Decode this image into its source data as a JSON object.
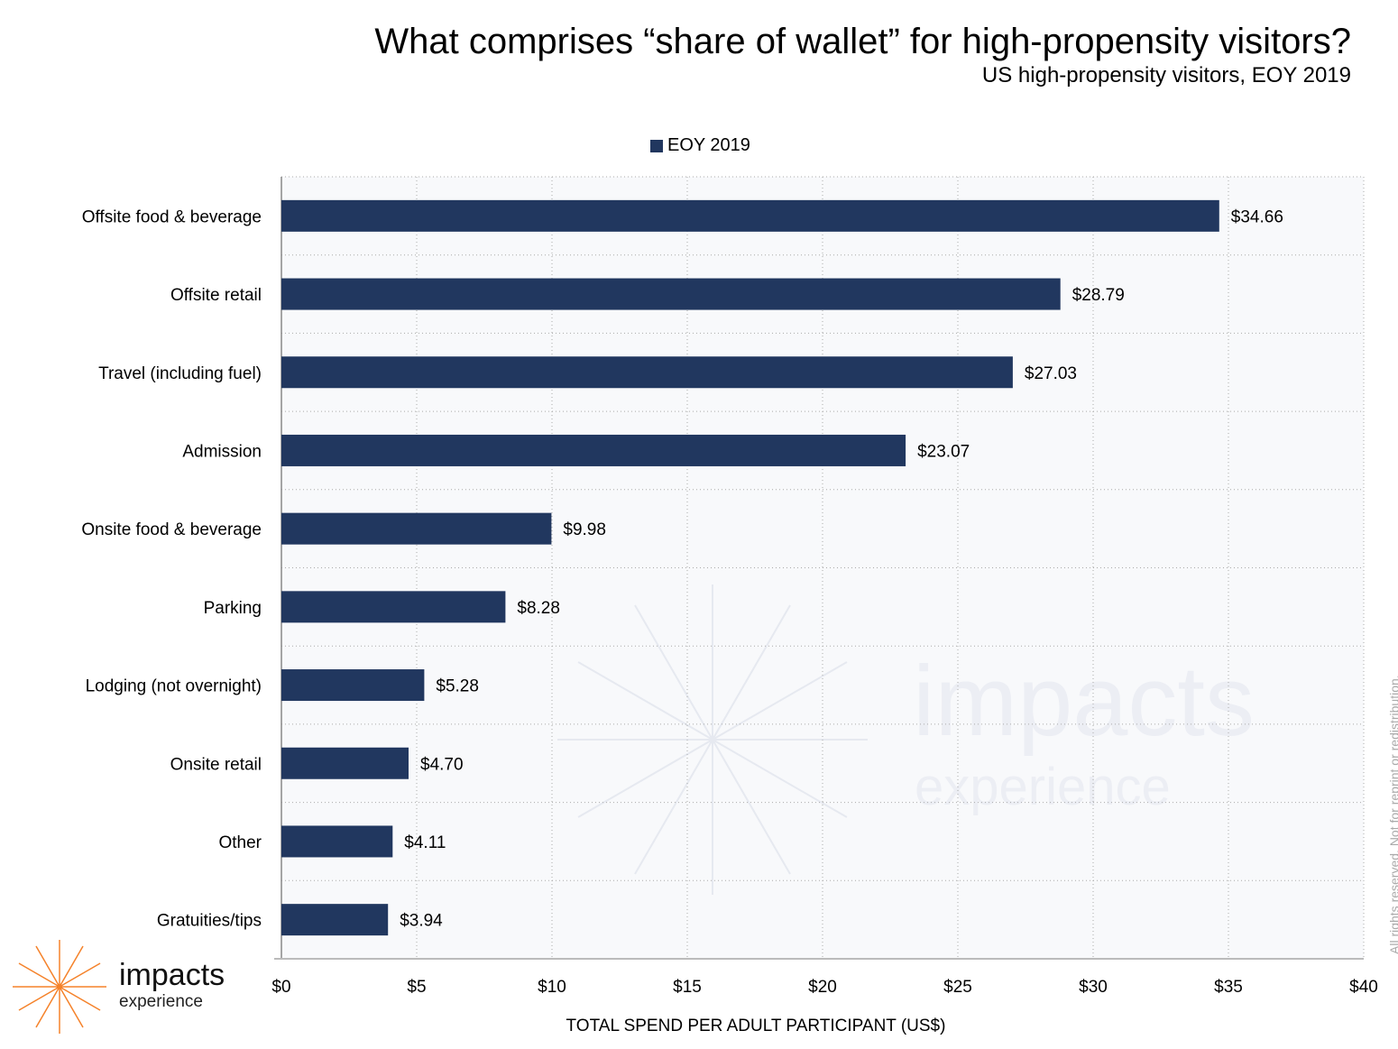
{
  "title": "What comprises “share of wallet” for high-propensity visitors?",
  "subtitle": "US high-propensity visitors, EOY 2019",
  "rights_note": "All rights reserved. Not for reprint or redistribution.",
  "logo": {
    "line1": "impacts",
    "line2": "experience",
    "color": "#f5822a"
  },
  "watermark": {
    "line1": "impacts",
    "line2": "experience"
  },
  "chart_data": {
    "type": "bar",
    "orientation": "horizontal",
    "title": "What comprises “share of wallet” for high-propensity visitors?",
    "subtitle": "US high-propensity visitors, EOY 2019",
    "xlabel": "TOTAL SPEND PER ADULT PARTICIPANT (US$)",
    "ylabel": "",
    "xlim": [
      0,
      40
    ],
    "xticks": [
      0,
      5,
      10,
      15,
      20,
      25,
      30,
      35,
      40
    ],
    "xtick_labels": [
      "$0",
      "$5",
      "$10",
      "$15",
      "$20",
      "$25",
      "$30",
      "$35",
      "$40"
    ],
    "grid": true,
    "legend_placement": "top",
    "categories": [
      "Offsite food & beverage",
      "Offsite retail",
      "Travel (including fuel)",
      "Admission",
      "Onsite food & beverage",
      "Parking",
      "Lodging (not overnight)",
      "Onsite retail",
      "Other",
      "Gratuities/tips"
    ],
    "series": [
      {
        "name": "EOY 2019",
        "color": "#21375f",
        "values": [
          34.66,
          28.79,
          27.03,
          23.07,
          9.98,
          8.28,
          5.28,
          4.7,
          4.11,
          3.94
        ],
        "labels": [
          "$34.66",
          "$28.79",
          "$27.03",
          "$23.07",
          "$9.98",
          "$8.28",
          "$5.28",
          "$4.70",
          "$4.11",
          "$3.94"
        ]
      }
    ]
  }
}
